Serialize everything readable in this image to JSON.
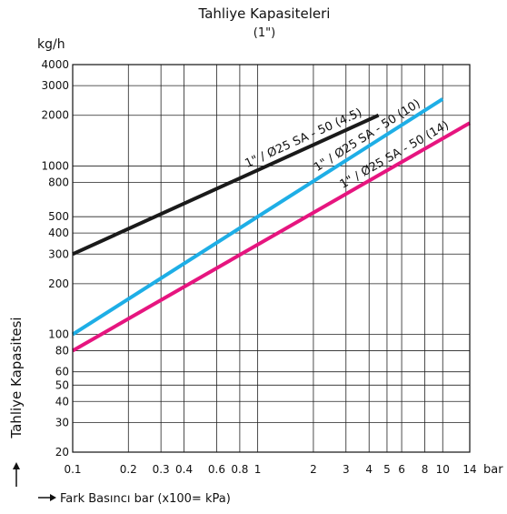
{
  "chart_data": {
    "type": "line",
    "title": "Tahliye Kapasiteleri",
    "subtitle": "(1\")",
    "ylabel": "Tahliye Kapasitesi",
    "yunit": "kg/h",
    "xlabel": "Fark Basıncı bar (x100= kPa)",
    "xunit": "bar",
    "xscale": "log",
    "yscale": "log",
    "xlim": [
      0.1,
      14
    ],
    "ylim": [
      20,
      4000
    ],
    "x_ticks": [
      {
        "value": 0.1,
        "label": "0.1"
      },
      {
        "value": 0.2,
        "label": "0.2"
      },
      {
        "value": 0.3,
        "label": "0.3"
      },
      {
        "value": 0.4,
        "label": "0.4"
      },
      {
        "value": 0.6,
        "label": "0.6"
      },
      {
        "value": 0.8,
        "label": "0.8"
      },
      {
        "value": 1,
        "label": "1"
      },
      {
        "value": 2,
        "label": "2"
      },
      {
        "value": 3,
        "label": "3"
      },
      {
        "value": 4,
        "label": "4"
      },
      {
        "value": 5,
        "label": "5"
      },
      {
        "value": 6,
        "label": "6"
      },
      {
        "value": 8,
        "label": "8"
      },
      {
        "value": 10,
        "label": "10"
      },
      {
        "value": 14,
        "label": "14"
      }
    ],
    "y_ticks": [
      {
        "value": 20,
        "label": "20"
      },
      {
        "value": 30,
        "label": "30"
      },
      {
        "value": 40,
        "label": "40"
      },
      {
        "value": 50,
        "label": "50"
      },
      {
        "value": 60,
        "label": "60"
      },
      {
        "value": 80,
        "label": "80"
      },
      {
        "value": 100,
        "label": "100"
      },
      {
        "value": 200,
        "label": "200"
      },
      {
        "value": 300,
        "label": "300"
      },
      {
        "value": 400,
        "label": "400"
      },
      {
        "value": 500,
        "label": "500"
      },
      {
        "value": 800,
        "label": "800"
      },
      {
        "value": 1000,
        "label": "1000"
      },
      {
        "value": 2000,
        "label": "2000"
      },
      {
        "value": 3000,
        "label": "3000"
      },
      {
        "value": 4000,
        "label": "4000"
      }
    ],
    "grid": true,
    "series": [
      {
        "name": "1\" / Ø25 SA - 50 (4.5)",
        "color": "#1a1a1a",
        "x": [
          0.1,
          4.5
        ],
        "y": [
          300,
          2000
        ]
      },
      {
        "name": "1\" / Ø25 SA - 50 (10)",
        "color": "#1eaee6",
        "x": [
          0.1,
          10
        ],
        "y": [
          100,
          2500
        ]
      },
      {
        "name": "1\" / Ø25 SA - 50 (14)",
        "color": "#e6157f",
        "x": [
          0.1,
          14
        ],
        "y": [
          80,
          1800
        ]
      }
    ]
  }
}
